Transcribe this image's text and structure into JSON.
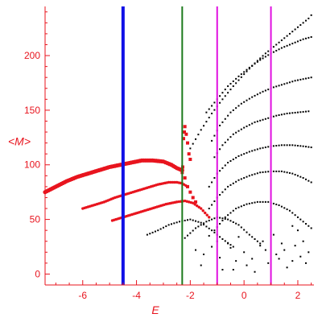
{
  "chart_data": {
    "type": "scatter",
    "xlabel": "E",
    "ylabel": "<M>",
    "xlim": [
      -7.4,
      2.6
    ],
    "ylim": [
      -10,
      245
    ],
    "xticks": [
      -6,
      -4,
      -2,
      0,
      2
    ],
    "yticks": [
      0,
      50,
      100,
      150,
      200
    ],
    "grid": false,
    "colors": {
      "axis": "#e8141e",
      "red_points": "#e8141e",
      "black_points": "#000000",
      "blue_line": "#1010e6",
      "green_line": "#1c7a1c",
      "magenta_line": "#e010e0"
    },
    "vertical_lines": [
      {
        "x": -4.5,
        "color": "#1010e6",
        "width": 4
      },
      {
        "x": -2.3,
        "color": "#1c7a1c",
        "width": 2
      },
      {
        "x": -1.0,
        "color": "#e010e0",
        "width": 2
      },
      {
        "x": 1.0,
        "color": "#e010e0",
        "width": 2
      }
    ],
    "red_branches": [
      {
        "x": [
          -7.4,
          -7.0,
          -6.6,
          -6.2,
          -5.8,
          -5.4,
          -5.0,
          -4.6,
          -4.2,
          -3.8,
          -3.4,
          -3.0,
          -2.7,
          -2.5,
          -2.3
        ],
        "y": [
          75,
          80,
          85,
          89,
          92,
          95,
          98,
          100,
          102,
          104,
          104,
          103,
          100,
          97,
          95
        ]
      },
      {
        "x": [
          -6.0,
          -5.6,
          -5.2,
          -4.8,
          -4.4,
          -4.0,
          -3.6,
          -3.2,
          -2.8,
          -2.5,
          -2.3,
          -2.1
        ],
        "y": [
          60,
          63,
          66,
          70,
          73,
          76,
          79,
          82,
          84,
          84,
          83,
          80
        ]
      },
      {
        "x": [
          -4.9,
          -4.5,
          -4.1,
          -3.7,
          -3.3,
          -2.9,
          -2.5,
          -2.2,
          -1.9,
          -1.6,
          -1.3
        ],
        "y": [
          49,
          52,
          55,
          58,
          61,
          64,
          66,
          67,
          65,
          60,
          52
        ]
      }
    ],
    "red_scatter": {
      "x": [
        -2.25,
        -2.22,
        -2.2,
        -2.15,
        -2.1,
        -2.05,
        -2.0,
        -2.3,
        -2.28,
        -2.2,
        -2.1,
        -2.0,
        -1.9,
        -1.8
      ],
      "y": [
        124,
        130,
        135,
        128,
        120,
        110,
        105,
        93,
        98,
        88,
        80,
        75,
        70,
        66
      ]
    },
    "black_curves": [
      {
        "x": [
          -3.6,
          -3.2,
          -2.8,
          -2.4,
          -2.0,
          -1.6,
          -1.2,
          -0.8,
          -0.4
        ],
        "y": [
          36,
          40,
          45,
          48,
          50,
          47,
          40,
          32,
          25
        ]
      },
      {
        "x": [
          -2.2,
          -1.8,
          -1.4,
          -1.0,
          -0.6,
          -0.2,
          0.2,
          0.6
        ],
        "y": [
          33,
          42,
          48,
          52,
          50,
          45,
          36,
          28
        ]
      },
      {
        "x": [
          -1.1,
          -0.7,
          -0.3,
          0.1,
          0.5,
          0.9,
          1.3,
          1.7,
          2.1,
          2.5
        ],
        "y": [
          40,
          52,
          60,
          64,
          66,
          66,
          63,
          58,
          50,
          42
        ]
      },
      {
        "x": [
          -1.3,
          -1.0,
          -0.6,
          -0.2,
          0.2,
          0.6,
          1.0,
          1.4,
          1.8,
          2.2,
          2.5
        ],
        "y": [
          60,
          70,
          80,
          86,
          90,
          93,
          94,
          94,
          92,
          88,
          84
        ]
      },
      {
        "x": [
          -1.3,
          -1.0,
          -0.6,
          -0.2,
          0.2,
          0.6,
          1.0,
          1.4,
          1.8,
          2.2,
          2.5
        ],
        "y": [
          80,
          92,
          102,
          108,
          112,
          115,
          117,
          118,
          118,
          117,
          116
        ]
      },
      {
        "x": [
          -1.1,
          -0.8,
          -0.4,
          0.0,
          0.4,
          0.8,
          1.2,
          1.6,
          2.0,
          2.4
        ],
        "y": [
          107,
          118,
          128,
          134,
          139,
          142,
          145,
          147,
          148,
          149
        ]
      },
      {
        "x": [
          -1.2,
          -0.9,
          -0.5,
          -0.1,
          0.3,
          0.7,
          1.1,
          1.5,
          1.9,
          2.3,
          2.5
        ],
        "y": [
          122,
          136,
          148,
          156,
          162,
          167,
          171,
          174,
          177,
          179,
          180
        ]
      },
      {
        "x": [
          -1.4,
          -1.0,
          -0.6,
          -0.2,
          0.2,
          0.6,
          1.0,
          1.4,
          1.8,
          2.2,
          2.5
        ],
        "y": [
          148,
          160,
          172,
          181,
          189,
          196,
          202,
          207,
          211,
          215,
          217
        ]
      },
      {
        "x": [
          -2.0,
          -1.6,
          -1.2,
          -0.8,
          -0.4,
          0.0,
          0.4,
          0.8,
          1.2,
          1.6,
          2.0,
          2.4,
          2.5
        ],
        "y": [
          115,
          132,
          147,
          160,
          172,
          183,
          193,
          202,
          210,
          218,
          226,
          234,
          237
        ]
      }
    ],
    "black_scatter": {
      "x": [
        -1.8,
        -1.5,
        -1.2,
        -0.9,
        -0.6,
        -0.3,
        0.0,
        0.3,
        0.6,
        0.9,
        1.2,
        1.5,
        1.8,
        2.1,
        2.4,
        -1.0,
        -0.5,
        0.1,
        0.7,
        1.3,
        1.9,
        2.3,
        -1.6,
        -0.8,
        0.4,
        1.6,
        2.2,
        -0.2,
        1.1,
        2.0,
        -1.3,
        0.8,
        1.8,
        -0.4,
        1.4
      ],
      "y": [
        22,
        18,
        25,
        15,
        28,
        12,
        20,
        14,
        26,
        10,
        18,
        22,
        12,
        16,
        20,
        30,
        24,
        8,
        30,
        14,
        26,
        10,
        8,
        4,
        2,
        6,
        30,
        34,
        36,
        40,
        35,
        22,
        44,
        4,
        28
      ]
    }
  }
}
